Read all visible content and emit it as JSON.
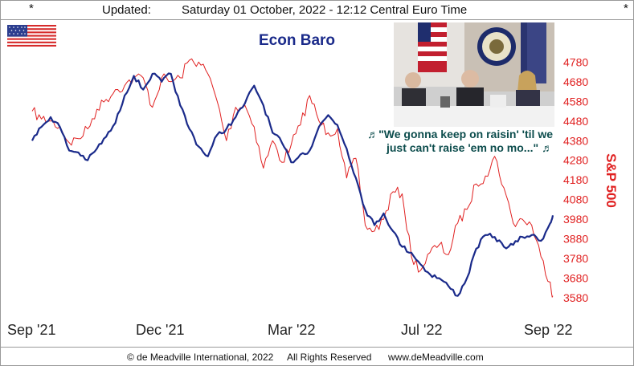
{
  "header": {
    "star_left": "*",
    "star_right": "*",
    "updated_label": "Updated:",
    "timestamp": "Saturday 01 October, 2022 - 12:12 Central Euro Time"
  },
  "flag_icon": "us-flag-icon",
  "photo_icon": "fed-officials-photo",
  "quote": {
    "line1": "♬\"We gonna keep on raisin' 'til we",
    "line2": "just can't raise 'em no mo...\" ♬"
  },
  "footer": {
    "copyright": "© de Meadville International, 2022",
    "rights": "All Rights Reserved",
    "website": "www.deMeadville.com"
  },
  "colors": {
    "econ_baro": "#1a2a8a",
    "sp500": "#e02020",
    "title": "#1a2a8a",
    "quote": "#0d4d4d"
  },
  "chart_data": {
    "type": "line",
    "title": "Econ Baro",
    "ylabel_right": "S&P 500",
    "xlabel": "",
    "x_tick_labels": [
      "Sep '21",
      "Dec '21",
      "Mar '22",
      "Jul '22",
      "Sep '22"
    ],
    "x_range": [
      "2021-09-01",
      "2022-09-30"
    ],
    "y_right_ticks": [
      4780,
      4680,
      4580,
      4480,
      4380,
      4280,
      4180,
      4080,
      3980,
      3880,
      3780,
      3680,
      3580
    ],
    "ylim_right": [
      3560,
      4810
    ],
    "grid": false,
    "series": [
      {
        "name": "S&P 500",
        "axis": "right",
        "color": "#e02020",
        "points": [
          [
            "2021-09-01",
            4530
          ],
          [
            "2021-09-08",
            4490
          ],
          [
            "2021-09-15",
            4480
          ],
          [
            "2021-09-22",
            4450
          ],
          [
            "2021-09-29",
            4370
          ],
          [
            "2021-10-06",
            4390
          ],
          [
            "2021-10-13",
            4440
          ],
          [
            "2021-10-20",
            4540
          ],
          [
            "2021-10-27",
            4590
          ],
          [
            "2021-11-03",
            4640
          ],
          [
            "2021-11-10",
            4660
          ],
          [
            "2021-11-17",
            4700
          ],
          [
            "2021-11-24",
            4700
          ],
          [
            "2021-12-01",
            4550
          ],
          [
            "2021-12-08",
            4700
          ],
          [
            "2021-12-15",
            4680
          ],
          [
            "2021-12-22",
            4700
          ],
          [
            "2021-12-29",
            4790
          ],
          [
            "2022-01-05",
            4780
          ],
          [
            "2022-01-12",
            4720
          ],
          [
            "2022-01-19",
            4580
          ],
          [
            "2022-01-26",
            4380
          ],
          [
            "2022-02-02",
            4550
          ],
          [
            "2022-02-09",
            4560
          ],
          [
            "2022-02-16",
            4450
          ],
          [
            "2022-02-23",
            4240
          ],
          [
            "2022-03-02",
            4380
          ],
          [
            "2022-03-09",
            4270
          ],
          [
            "2022-03-16",
            4360
          ],
          [
            "2022-03-23",
            4460
          ],
          [
            "2022-03-30",
            4610
          ],
          [
            "2022-04-06",
            4480
          ],
          [
            "2022-04-13",
            4420
          ],
          [
            "2022-04-20",
            4440
          ],
          [
            "2022-04-27",
            4190
          ],
          [
            "2022-05-04",
            4290
          ],
          [
            "2022-05-11",
            3950
          ],
          [
            "2022-05-18",
            3920
          ],
          [
            "2022-05-25",
            3980
          ],
          [
            "2022-06-01",
            4120
          ],
          [
            "2022-06-08",
            4110
          ],
          [
            "2022-06-15",
            3790
          ],
          [
            "2022-06-22",
            3720
          ],
          [
            "2022-06-29",
            3810
          ],
          [
            "2022-07-06",
            3850
          ],
          [
            "2022-07-13",
            3800
          ],
          [
            "2022-07-20",
            3960
          ],
          [
            "2022-07-27",
            4030
          ],
          [
            "2022-08-03",
            4160
          ],
          [
            "2022-08-10",
            4200
          ],
          [
            "2022-08-17",
            4300
          ],
          [
            "2022-08-24",
            4140
          ],
          [
            "2022-08-31",
            3960
          ],
          [
            "2022-09-07",
            3980
          ],
          [
            "2022-09-14",
            3950
          ],
          [
            "2022-09-21",
            3790
          ],
          [
            "2022-09-28",
            3660
          ],
          [
            "2022-09-30",
            3590
          ]
        ]
      },
      {
        "name": "Econ Baro",
        "axis": "left",
        "color": "#1a2a8a",
        "points": [
          [
            "2021-09-01",
            4380
          ],
          [
            "2021-09-08",
            4450
          ],
          [
            "2021-09-15",
            4500
          ],
          [
            "2021-09-22",
            4450
          ],
          [
            "2021-09-29",
            4330
          ],
          [
            "2021-10-06",
            4320
          ],
          [
            "2021-10-13",
            4280
          ],
          [
            "2021-10-20",
            4340
          ],
          [
            "2021-10-27",
            4400
          ],
          [
            "2021-11-03",
            4470
          ],
          [
            "2021-11-10",
            4610
          ],
          [
            "2021-11-17",
            4710
          ],
          [
            "2021-11-24",
            4640
          ],
          [
            "2021-12-01",
            4720
          ],
          [
            "2021-12-08",
            4680
          ],
          [
            "2021-12-15",
            4720
          ],
          [
            "2021-12-22",
            4560
          ],
          [
            "2021-12-29",
            4440
          ],
          [
            "2022-01-05",
            4350
          ],
          [
            "2022-01-12",
            4300
          ],
          [
            "2022-01-19",
            4410
          ],
          [
            "2022-01-26",
            4440
          ],
          [
            "2022-02-02",
            4500
          ],
          [
            "2022-02-09",
            4570
          ],
          [
            "2022-02-16",
            4660
          ],
          [
            "2022-02-23",
            4560
          ],
          [
            "2022-03-02",
            4420
          ],
          [
            "2022-03-09",
            4370
          ],
          [
            "2022-03-16",
            4270
          ],
          [
            "2022-03-23",
            4310
          ],
          [
            "2022-03-30",
            4330
          ],
          [
            "2022-04-06",
            4450
          ],
          [
            "2022-04-13",
            4510
          ],
          [
            "2022-04-20",
            4460
          ],
          [
            "2022-04-27",
            4340
          ],
          [
            "2022-05-04",
            4190
          ],
          [
            "2022-05-11",
            4030
          ],
          [
            "2022-05-18",
            3950
          ],
          [
            "2022-05-25",
            4010
          ],
          [
            "2022-06-01",
            3920
          ],
          [
            "2022-06-08",
            3840
          ],
          [
            "2022-06-15",
            3810
          ],
          [
            "2022-06-22",
            3750
          ],
          [
            "2022-06-29",
            3700
          ],
          [
            "2022-07-06",
            3680
          ],
          [
            "2022-07-13",
            3640
          ],
          [
            "2022-07-20",
            3590
          ],
          [
            "2022-07-27",
            3680
          ],
          [
            "2022-08-03",
            3830
          ],
          [
            "2022-08-10",
            3900
          ],
          [
            "2022-08-17",
            3890
          ],
          [
            "2022-08-24",
            3840
          ],
          [
            "2022-08-31",
            3850
          ],
          [
            "2022-09-07",
            3890
          ],
          [
            "2022-09-14",
            3900
          ],
          [
            "2022-09-21",
            3870
          ],
          [
            "2022-09-28",
            3960
          ],
          [
            "2022-09-30",
            4000
          ]
        ]
      }
    ]
  }
}
